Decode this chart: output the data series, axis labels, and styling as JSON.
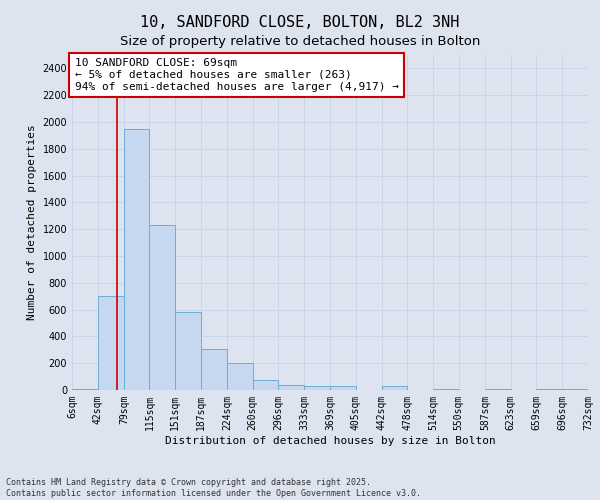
{
  "title": "10, SANDFORD CLOSE, BOLTON, BL2 3NH",
  "subtitle": "Size of property relative to detached houses in Bolton",
  "xlabel": "Distribution of detached houses by size in Bolton",
  "ylabel": "Number of detached properties",
  "bin_edges": [
    6,
    42,
    79,
    115,
    151,
    187,
    224,
    260,
    296,
    333,
    369,
    405,
    442,
    478,
    514,
    550,
    587,
    623,
    659,
    696,
    732
  ],
  "bar_heights": [
    5,
    700,
    1950,
    1230,
    580,
    305,
    200,
    75,
    40,
    30,
    30,
    0,
    30,
    0,
    5,
    0,
    10,
    0,
    5,
    5
  ],
  "bar_color": "#c5d8ef",
  "bar_edge_color": "#6baed6",
  "property_size": 69,
  "red_line_color": "#cc0000",
  "annotation_text": "10 SANDFORD CLOSE: 69sqm\n← 5% of detached houses are smaller (263)\n94% of semi-detached houses are larger (4,917) →",
  "annotation_box_color": "#cc0000",
  "annotation_bg": "#ffffff",
  "ylim_max": 2500,
  "yticks": [
    0,
    200,
    400,
    600,
    800,
    1000,
    1200,
    1400,
    1600,
    1800,
    2000,
    2200,
    2400
  ],
  "grid_color": "#c8d4e8",
  "bg_color": "#dde4f0",
  "footer_text": "Contains HM Land Registry data © Crown copyright and database right 2025.\nContains public sector information licensed under the Open Government Licence v3.0.",
  "title_fontsize": 11,
  "subtitle_fontsize": 9.5,
  "tick_fontsize": 7,
  "ylabel_fontsize": 8,
  "xlabel_fontsize": 8,
  "annotation_fontsize": 8,
  "footer_fontsize": 6
}
